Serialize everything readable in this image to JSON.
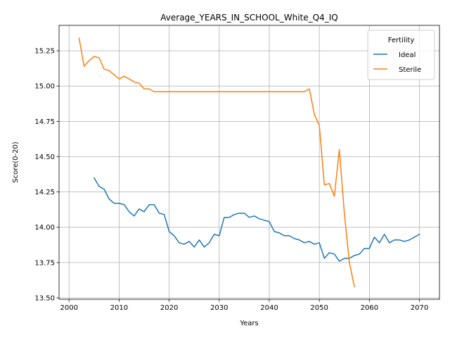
{
  "chart_data": {
    "type": "line",
    "title": "Average_YEARS_IN_SCHOOL_White_Q4_IQ",
    "xlabel": "Years",
    "ylabel": "Score(0-20)",
    "xlim": [
      1998,
      2074
    ],
    "ylim": [
      13.49,
      15.43
    ],
    "xticks": [
      2000,
      2010,
      2020,
      2030,
      2040,
      2050,
      2060,
      2070
    ],
    "yticks": [
      13.5,
      13.75,
      14.0,
      14.25,
      14.5,
      14.75,
      15.0,
      15.25
    ],
    "grid": true,
    "legend": {
      "title": "Fertility",
      "placement": "upper right"
    },
    "series": [
      {
        "name": "Ideal",
        "color": "#1f77b4",
        "x": [
          2005,
          2006,
          2007,
          2008,
          2009,
          2010,
          2011,
          2012,
          2013,
          2014,
          2015,
          2016,
          2017,
          2018,
          2019,
          2020,
          2021,
          2022,
          2023,
          2024,
          2025,
          2026,
          2027,
          2028,
          2029,
          2030,
          2031,
          2032,
          2033,
          2034,
          2035,
          2036,
          2037,
          2038,
          2039,
          2040,
          2041,
          2042,
          2043,
          2044,
          2045,
          2046,
          2047,
          2048,
          2049,
          2050,
          2051,
          2052,
          2053,
          2054,
          2055,
          2056,
          2057,
          2058,
          2059,
          2060,
          2061,
          2062,
          2063,
          2064,
          2065,
          2066,
          2067,
          2068,
          2069,
          2070
        ],
        "y": [
          14.35,
          14.29,
          14.27,
          14.2,
          14.17,
          14.17,
          14.16,
          14.11,
          14.08,
          14.13,
          14.11,
          14.16,
          14.16,
          14.1,
          14.09,
          13.97,
          13.94,
          13.89,
          13.88,
          13.9,
          13.86,
          13.91,
          13.86,
          13.89,
          13.95,
          13.94,
          14.07,
          14.07,
          14.09,
          14.1,
          14.1,
          14.07,
          14.08,
          14.06,
          14.05,
          14.04,
          13.97,
          13.96,
          13.94,
          13.94,
          13.92,
          13.91,
          13.89,
          13.9,
          13.88,
          13.89,
          13.78,
          13.82,
          13.81,
          13.76,
          13.78,
          13.78,
          13.8,
          13.81,
          13.85,
          13.85,
          13.93,
          13.89,
          13.95,
          13.89,
          13.91,
          13.91,
          13.9,
          13.91,
          13.93,
          13.95
        ]
      },
      {
        "name": "Sterile",
        "color": "#ff7f0e",
        "x": [
          2002,
          2003,
          2004,
          2005,
          2006,
          2007,
          2008,
          2009,
          2010,
          2011,
          2012,
          2013,
          2014,
          2015,
          2016,
          2017,
          2018,
          2019,
          2020,
          2021,
          2022,
          2023,
          2024,
          2025,
          2026,
          2027,
          2028,
          2029,
          2030,
          2031,
          2032,
          2033,
          2034,
          2035,
          2036,
          2037,
          2038,
          2039,
          2040,
          2041,
          2042,
          2043,
          2044,
          2045,
          2046,
          2047,
          2048,
          2049,
          2050,
          2051,
          2052,
          2053,
          2054,
          2055,
          2056,
          2057
        ],
        "y": [
          15.34,
          15.14,
          15.18,
          15.21,
          15.2,
          15.12,
          15.11,
          15.08,
          15.05,
          15.07,
          15.05,
          15.03,
          15.02,
          14.98,
          14.98,
          14.96,
          14.96,
          14.96,
          14.96,
          14.96,
          14.96,
          14.96,
          14.96,
          14.96,
          14.96,
          14.96,
          14.96,
          14.96,
          14.96,
          14.96,
          14.96,
          14.96,
          14.96,
          14.96,
          14.96,
          14.96,
          14.96,
          14.96,
          14.96,
          14.96,
          14.96,
          14.96,
          14.96,
          14.96,
          14.96,
          14.96,
          14.98,
          14.8,
          14.72,
          14.3,
          14.31,
          14.22,
          14.55,
          14.1,
          13.75,
          13.58
        ]
      }
    ]
  }
}
